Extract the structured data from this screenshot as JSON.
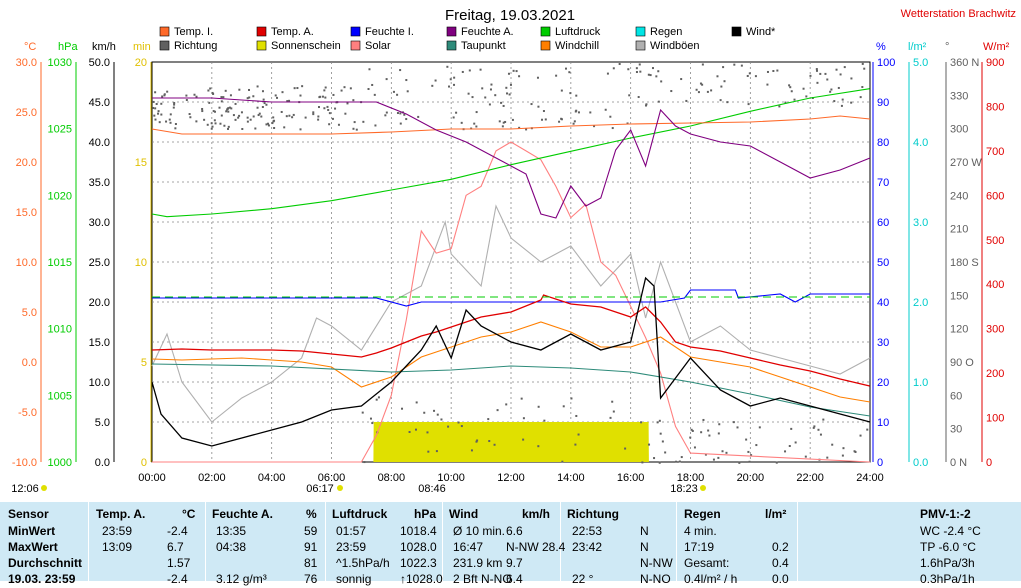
{
  "title": "Freitag, 19.03.2021",
  "station": "Wetterstation Brachwitz",
  "legend": [
    {
      "label": "Temp. I.",
      "color": "#ff6a2a"
    },
    {
      "label": "Temp. A.",
      "color": "#e00000"
    },
    {
      "label": "Feuchte I.",
      "color": "#0000ff"
    },
    {
      "label": "Feuchte A.",
      "color": "#800080"
    },
    {
      "label": "Luftdruck",
      "color": "#00cc00"
    },
    {
      "label": "Regen",
      "color": "#00e5e5"
    },
    {
      "label": "Wind*",
      "color": "#000000"
    },
    {
      "label": "Richtung",
      "color": "#606060"
    },
    {
      "label": "Sonnenschein",
      "color": "#e0e000"
    },
    {
      "label": "Solar",
      "color": "#ff8080"
    },
    {
      "label": "Taupunkt",
      "color": "#2e8b7a"
    },
    {
      "label": "Windchill",
      "color": "#ff7f00"
    },
    {
      "label": "Windböen",
      "color": "#b0b0b0"
    }
  ],
  "axis_units": {
    "temp": "°C",
    "hpa": "hPa",
    "kmh": "km/h",
    "min": "min",
    "pct": "%",
    "rain": "l/m²",
    "deg": "°",
    "wm2": "W/m²"
  },
  "axis_ticks": {
    "temp": [
      "30.0",
      "25.0",
      "20.0",
      "15.0",
      "10.0",
      "5.0",
      "0.0",
      "-5.0",
      "-10.0"
    ],
    "hpa": [
      "1030",
      "1025",
      "1020",
      "1015",
      "1010",
      "1005",
      "1000"
    ],
    "kmh": [
      "50.0",
      "45.0",
      "40.0",
      "35.0",
      "30.0",
      "25.0",
      "20.0",
      "15.0",
      "10.0",
      "5.0",
      "0.0"
    ],
    "min": [
      "20",
      "15",
      "10",
      "5",
      "0"
    ],
    "pct": [
      "100",
      "90",
      "80",
      "70",
      "60",
      "50",
      "40",
      "30",
      "20",
      "10",
      "0"
    ],
    "rain": [
      "5.0",
      "4.0",
      "3.0",
      "2.0",
      "1.0",
      "0.0"
    ],
    "deg": [
      "360 N",
      "330",
      "300",
      "270 W",
      "240",
      "210",
      "180 S",
      "150",
      "120",
      "90 O",
      "60",
      "30",
      "0 N"
    ],
    "wm2": [
      "900",
      "800",
      "700",
      "600",
      "500",
      "400",
      "300",
      "200",
      "100",
      "0"
    ],
    "x": [
      "00:00",
      "02:00",
      "04:00",
      "06:00",
      "08:00",
      "10:00",
      "12:00",
      "14:00",
      "16:00",
      "18:00",
      "20:00",
      "22:00",
      "24:00"
    ]
  },
  "sun": {
    "sunrise": "06:17",
    "sunset": "18:23",
    "noon": "12:06",
    "max_sun": "08:46"
  },
  "chart_data": {
    "type": "line",
    "title": "Freitag, 19.03.2021",
    "x_unit": "hour",
    "xlim": [
      0,
      24
    ],
    "series": [
      {
        "name": "Temp. I.",
        "unit": "°C",
        "color": "#ff6a2a",
        "x": [
          0,
          1,
          3,
          6,
          8,
          10,
          12,
          14,
          16,
          18,
          20,
          22,
          23,
          24
        ],
        "values": [
          23.3,
          22.8,
          22.8,
          22.8,
          23.0,
          23.3,
          23.3,
          23.6,
          23.8,
          23.9,
          24.0,
          24.3,
          24.6,
          24.3
        ]
      },
      {
        "name": "Temp. A.",
        "unit": "°C",
        "color": "#e00000",
        "x": [
          0,
          1,
          2,
          3,
          4,
          5,
          6,
          7,
          7.5,
          8,
          8.5,
          9,
          9.5,
          10,
          11,
          12,
          13,
          13.09,
          14,
          15,
          16,
          16.5,
          17,
          17.5,
          18,
          19,
          20,
          21,
          22,
          23,
          23.99
        ],
        "values": [
          1.2,
          1.3,
          1.2,
          1.2,
          1.2,
          1.1,
          0.8,
          0.5,
          0.9,
          1.4,
          2.0,
          2.6,
          3.0,
          3.5,
          4.5,
          5.0,
          6.2,
          6.7,
          5.8,
          5.5,
          4.5,
          5.5,
          4.0,
          2.0,
          1.5,
          1.1,
          0.4,
          -0.3,
          -0.9,
          -1.7,
          -2.4
        ]
      },
      {
        "name": "Feuchte I.",
        "unit": "%",
        "color": "#0000ff",
        "x": [
          0,
          4,
          7.5,
          8.5,
          9,
          10,
          12,
          14,
          16,
          17,
          17.8,
          18,
          18.5,
          19.5,
          19.6,
          21,
          21.5,
          22,
          24
        ],
        "values": [
          41,
          41,
          41,
          39,
          40,
          40,
          40,
          40,
          40,
          40,
          41,
          43,
          43,
          43,
          41,
          42,
          40,
          42,
          42
        ]
      },
      {
        "name": "Feuchte A.",
        "unit": "%",
        "color": "#800080",
        "x": [
          0,
          2,
          4,
          6,
          7.5,
          8.5,
          9.5,
          10.5,
          11,
          12,
          12.5,
          13,
          13.5,
          14,
          14.5,
          15,
          15.5,
          16,
          16.5,
          17,
          17.5,
          18,
          19,
          20,
          21,
          22,
          23,
          24
        ],
        "values": [
          91,
          91,
          90,
          90,
          90,
          87,
          83,
          80,
          78,
          74,
          72,
          62,
          61,
          69,
          64,
          66,
          78,
          83,
          74,
          88,
          84,
          82,
          80,
          79,
          75,
          71,
          73,
          76
        ]
      },
      {
        "name": "Luftdruck",
        "unit": "hPa",
        "color": "#00cc00",
        "x": [
          0,
          0.5,
          2,
          4,
          6,
          8,
          10,
          12,
          14,
          16,
          18,
          20,
          22,
          23.99
        ],
        "values": [
          1018.6,
          1018.4,
          1018.6,
          1019.0,
          1019.6,
          1020.4,
          1021.2,
          1022.3,
          1023.3,
          1024.3,
          1025.2,
          1026.3,
          1027.3,
          1028.0
        ]
      },
      {
        "name": "Taupunkt",
        "unit": "°C",
        "color": "#2e8b7a",
        "x": [
          0,
          4,
          8,
          10,
          12,
          14,
          16,
          18,
          20,
          22,
          24
        ],
        "values": [
          -0.2,
          -0.4,
          -1.0,
          -0.8,
          -0.4,
          -0.6,
          -1.0,
          -2.0,
          -3.2,
          -4.5,
          -5.4
        ]
      },
      {
        "name": "Windchill",
        "unit": "°C",
        "color": "#ff7f00",
        "x": [
          0,
          1,
          2,
          3,
          4,
          5,
          6,
          7,
          8,
          9,
          10,
          11,
          12,
          13,
          14,
          15,
          16,
          17,
          18,
          19,
          20,
          21,
          22,
          23,
          24
        ],
        "values": [
          0.3,
          0.2,
          0.3,
          0.4,
          0.2,
          0.0,
          -0.5,
          -2.5,
          -1.5,
          0.5,
          1.5,
          2.5,
          3.0,
          4.0,
          3.0,
          1.5,
          1.5,
          2.5,
          0.5,
          0.0,
          -0.5,
          -1.5,
          -2.5,
          -3.5,
          -4.0
        ]
      },
      {
        "name": "Wind*",
        "unit": "km/h",
        "color": "#000000",
        "x": [
          0,
          0.3,
          1,
          2,
          3,
          4,
          5,
          6,
          7,
          8,
          9,
          9.5,
          10,
          10.5,
          11,
          12,
          13,
          14,
          15,
          16,
          16.5,
          16.78,
          17,
          18,
          19,
          20,
          21,
          22,
          23,
          24
        ],
        "values": [
          10,
          6,
          3,
          2,
          3,
          4,
          5,
          6.5,
          7,
          10,
          14,
          17,
          13,
          19,
          17,
          15,
          14,
          16,
          14,
          15,
          23,
          22,
          8,
          13,
          9,
          7,
          8,
          7,
          6,
          5
        ]
      },
      {
        "name": "Windböen",
        "unit": "km/h",
        "color": "#b0b0b0",
        "x": [
          0,
          0.5,
          1,
          2,
          3,
          4,
          5,
          5.5,
          6,
          7,
          8,
          9,
          9.8,
          10,
          11,
          11.5,
          12,
          13,
          14,
          15,
          16,
          16.5,
          17,
          18,
          19,
          20,
          21,
          22,
          23,
          24
        ],
        "values": [
          12,
          16,
          10,
          5,
          8,
          10,
          13,
          18,
          17,
          14,
          20,
          22,
          30,
          26,
          22,
          32,
          28,
          25,
          27,
          22,
          26,
          18,
          25,
          15,
          17,
          14,
          13,
          12,
          11,
          13
        ]
      },
      {
        "name": "Solar",
        "unit": "W/m²",
        "color": "#ff8080",
        "x": [
          0,
          7,
          7.5,
          8,
          8.5,
          9,
          9.5,
          10,
          10.5,
          11,
          11.5,
          12,
          12.5,
          13,
          13.5,
          14,
          14.5,
          15,
          15.5,
          16,
          16.5,
          17,
          17.5,
          18,
          24
        ],
        "values": [
          0,
          0,
          60,
          150,
          320,
          520,
          470,
          480,
          600,
          620,
          700,
          720,
          700,
          680,
          620,
          550,
          580,
          450,
          420,
          350,
          280,
          200,
          80,
          20,
          0
        ]
      },
      {
        "name": "Sonnenschein",
        "unit": "min",
        "color": "#e0e000",
        "x": [
          0,
          7.4,
          7.41,
          16.6,
          16.61,
          24
        ],
        "values": [
          0,
          0,
          2,
          2,
          0,
          0
        ]
      }
    ],
    "direction_dots": {
      "name": "Richtung",
      "unit": "°",
      "color": "#606060",
      "note_values": [
        315,
        320,
        330,
        340,
        300,
        250,
        30,
        350,
        340,
        330
      ]
    },
    "ylim": {
      "temp": [
        -10,
        30
      ],
      "hpa": [
        1000,
        1030
      ],
      "kmh": [
        0,
        50
      ],
      "min": [
        0,
        20
      ],
      "pct": [
        0,
        100
      ],
      "rain": [
        0,
        5
      ],
      "deg": [
        0,
        360
      ],
      "wm2": [
        0,
        900
      ]
    }
  },
  "table": {
    "header": [
      "Sensor",
      "Temp. A.",
      "°C",
      "Feuchte A.",
      "%",
      "Luftdruck",
      "hPa",
      "Wind",
      "km/h",
      "Richtung",
      "",
      "Regen",
      "l/m²",
      "PMV-1:-2"
    ],
    "rows": [
      {
        "label": "MinWert",
        "c1": "23:59",
        "c2": "-2.4",
        "c3": "13:35",
        "c4": "59",
        "c5": "01:57",
        "c6": "1018.4",
        "c7": "Ø 10 min.",
        "c8": "6.6",
        "c9": "22:53",
        "c10": "N",
        "c11": "4 min.",
        "c12": "",
        "c13": "WC -2.4 °C"
      },
      {
        "label": "MaxWert",
        "c1": "13:09",
        "c2": "6.7",
        "c3": "04:38",
        "c4": "91",
        "c5": "23:59",
        "c6": "1028.0",
        "c7": "16:47",
        "c8": "N-NW 28.4",
        "c9": "23:42",
        "c10": "N",
        "c11": "17:19",
        "c12": "0.2",
        "c13": "TP -6.0 °C"
      },
      {
        "label": "Durchschnitt",
        "c1": "",
        "c2": "1.57",
        "c3": "",
        "c4": "81",
        "c5": "^1.5hPa/h",
        "c6": "1022.3",
        "c7": "231.9 km",
        "c8": "9.7",
        "c9": "",
        "c10": "N-NW",
        "c11": "Gesamt:",
        "c12": "0.4",
        "c13": "1.6hPa/3h"
      },
      {
        "label": "19.03. 23:59",
        "c1": "",
        "c2": "-2.4",
        "c3": "3.12 g/m³",
        "c4": "76",
        "c5": "sonnig",
        "c6": "↑1028.0",
        "c7": "2 Bft N-NO",
        "c8": "6.4",
        "c9": "22 °",
        "c10": "N-NO",
        "c11": "0.4l/m² / h",
        "c12": "0.0",
        "c13": "0.3hPa/1h"
      }
    ]
  }
}
